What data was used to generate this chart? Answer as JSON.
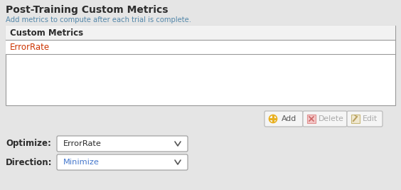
{
  "bg_color": "#e5e5e5",
  "title": "Post-Training Custom Metrics",
  "subtitle": "Add metrics to compute after each trial is complete.",
  "table_header": "Custom Metrics",
  "table_entry": "ErrorRate",
  "label_optimize": "Optimize:",
  "label_direction": "Direction:",
  "dropdown_optimize": "ErrorRate",
  "dropdown_direction": "Minimize",
  "title_color": "#2c2c2c",
  "subtitle_color": "#5588aa",
  "table_entry_color": "#cc3300",
  "label_color": "#2c2c2c",
  "dropdown_text_color": "#2c2c2c",
  "dropdown_blue": "#4477cc",
  "table_bg": "#ffffff",
  "table_header_bg": "#f2f2f2",
  "border_color": "#999999",
  "dropdown_bg": "#ffffff",
  "btn_bg": "#f5f5f5",
  "btn_border": "#bbbbbb",
  "btn_add_icon_color": "#e8b020",
  "btn_delete_icon_color": "#e09090",
  "btn_edit_icon_color": "#c8b878",
  "btn_text_color": "#555555",
  "btn_disabled_text": "#aaaaaa"
}
